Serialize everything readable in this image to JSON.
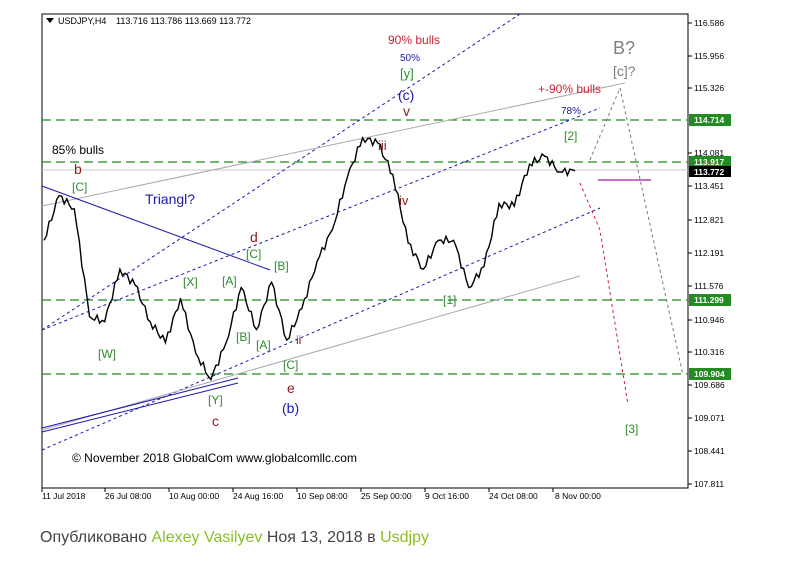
{
  "header": {
    "symbol_label": "USDJPY,H4",
    "ohlc_text": "113.716 113.786 113.669 113.772"
  },
  "copyright_text": "© November 2018 GlobalCom www.globalcomllc.com",
  "footer": {
    "published_prefix": "Опубликовано",
    "author": "Alexey Vasilyev",
    "date_text": "Ноя 13, 2018",
    "in_word": "в",
    "tag": "Usdjpy"
  },
  "colors": {
    "green_level": "#228b22",
    "blue_channel": "#1a1aa8",
    "grey_channel": "#aaaaaa",
    "red_projection": "#cc2233",
    "grey_projection": "#777777",
    "wave_green": "#2e8b2e",
    "wave_dark_red": "#8b1a1a",
    "wave_blue": "#1a1aa8",
    "wave_grey": "#808080",
    "current_marker": "#b040b0",
    "candles": "#000000"
  },
  "chart_data": {
    "type": "line",
    "title": "USDJPY,H4",
    "price_axis_ticks": [
      "116.586",
      "115.956",
      "115.326",
      "114.714",
      "114.081",
      "113.451",
      "112.821",
      "112.191",
      "111.576",
      "110.946",
      "110.316",
      "109.686",
      "109.071",
      "108.441",
      "107.811"
    ],
    "price_axis_range": [
      107.811,
      116.586
    ],
    "time_axis_ticks": [
      "11 Jul 2018",
      "26 Jul 08:00",
      "10 Aug 00:00",
      "24 Aug 16:00",
      "10 Sep 08:00",
      "25 Sep 00:00",
      "9 Oct 16:00",
      "24 Oct 08:00",
      "8 Nov 00:00"
    ],
    "highlighted_levels": [
      {
        "label": "114.714",
        "value": 114.714,
        "color": "green"
      },
      {
        "label": "113.917",
        "value": 113.917,
        "color": "green"
      },
      {
        "label": "113.772",
        "value": 113.772,
        "color": "black",
        "current_price": true
      },
      {
        "label": "111.299",
        "value": 111.299,
        "color": "green"
      },
      {
        "label": "109.904",
        "value": 109.904,
        "color": "green"
      }
    ],
    "price_path": [
      {
        "x": "11 Jul 2018",
        "y": 112.45
      },
      {
        "x": "15 Jul",
        "y": 113.3
      },
      {
        "x": "19 Jul",
        "y": 113.05
      },
      {
        "x": "22 Jul",
        "y": 111.0
      },
      {
        "x": "26 Jul 08:00",
        "y": 110.9
      },
      {
        "x": "29 Jul",
        "y": 111.9
      },
      {
        "x": "3 Aug",
        "y": 111.6
      },
      {
        "x": "7 Aug",
        "y": 110.9
      },
      {
        "x": "10 Aug 00:00",
        "y": 110.5
      },
      {
        "x": "12 Aug",
        "y": 111.35
      },
      {
        "x": "14 Aug",
        "y": 110.3
      },
      {
        "x": "17 Aug",
        "y": 109.8
      },
      {
        "x": "20 Aug",
        "y": 110.5
      },
      {
        "x": "24 Aug 16:00",
        "y": 111.55
      },
      {
        "x": "27 Aug",
        "y": 110.75
      },
      {
        "x": "30 Aug",
        "y": 111.65
      },
      {
        "x": "3 Sep",
        "y": 110.55
      },
      {
        "x": "10 Sep 08:00",
        "y": 111.15
      },
      {
        "x": "15 Sep",
        "y": 112.05
      },
      {
        "x": "20 Sep",
        "y": 112.65
      },
      {
        "x": "25 Sep 00:00",
        "y": 113.65
      },
      {
        "x": "29 Sep",
        "y": 114.4
      },
      {
        "x": "2 Oct",
        "y": 114.3
      },
      {
        "x": "4 Oct",
        "y": 113.7
      },
      {
        "x": "9 Oct 16:00",
        "y": 112.4
      },
      {
        "x": "12 Oct",
        "y": 111.9
      },
      {
        "x": "16 Oct",
        "y": 112.45
      },
      {
        "x": "20 Oct",
        "y": 112.45
      },
      {
        "x": "24 Oct 08:00",
        "y": 111.55
      },
      {
        "x": "26 Oct",
        "y": 111.95
      },
      {
        "x": "30 Oct",
        "y": 113.15
      },
      {
        "x": "3 Nov",
        "y": 113.1
      },
      {
        "x": "6 Nov",
        "y": 113.9
      },
      {
        "x": "8 Nov 00:00",
        "y": 114.05
      },
      {
        "x": "10 Nov",
        "y": 113.75
      },
      {
        "x": "13 Nov",
        "y": 113.772
      }
    ],
    "annotations": {
      "labels_green": [
        "[C]",
        "[W]",
        "[X]",
        "[A]",
        "[B]",
        "[C]",
        "[A]",
        "[B]",
        "[C]",
        "[Y]",
        "[y]",
        "[1]",
        "[2]",
        "[3]"
      ],
      "labels_dark_red": [
        "b",
        "d",
        "c",
        "e",
        "iii",
        "iv",
        "v",
        "ii"
      ],
      "labels_blue": [
        "Triangl?",
        "(c)",
        "(b)",
        "50%",
        "78%"
      ],
      "labels_red": [
        "85% bulls",
        "90% bulls",
        "+-90% bulls"
      ],
      "labels_grey": [
        "B?",
        "[c]?"
      ]
    }
  }
}
